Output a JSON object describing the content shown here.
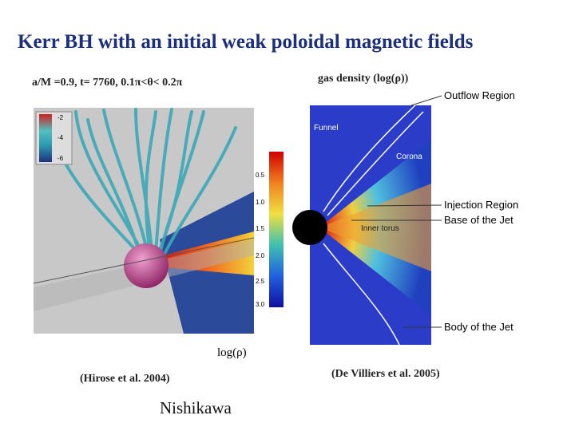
{
  "title": "Kerr BH with an initial weak poloidal magnetic fields",
  "left_panel": {
    "caption": "a/M =0.9, t= 7760, 0.1π<θ< 0.2π",
    "inset_colorbar": [
      "-2",
      "-4",
      "-6"
    ],
    "colorbar": [
      "0.5",
      "1.0",
      "1.5",
      "2.0",
      "2.5",
      "3.0"
    ],
    "colorbar_label": "log(ρ)",
    "credit": "(Hirose et al. 2004)"
  },
  "right_panel": {
    "caption": "gas density (log(ρ))",
    "labels": {
      "outflow": "Outflow Region",
      "funnel": "Funnel",
      "corona": "Corona",
      "injection": "Injection Region",
      "base": "Base of the Jet",
      "torus": "Inner torus",
      "body": "Body of the Jet"
    },
    "credit": "(De Villiers et al. 2005)"
  },
  "author": "Nishikawa"
}
